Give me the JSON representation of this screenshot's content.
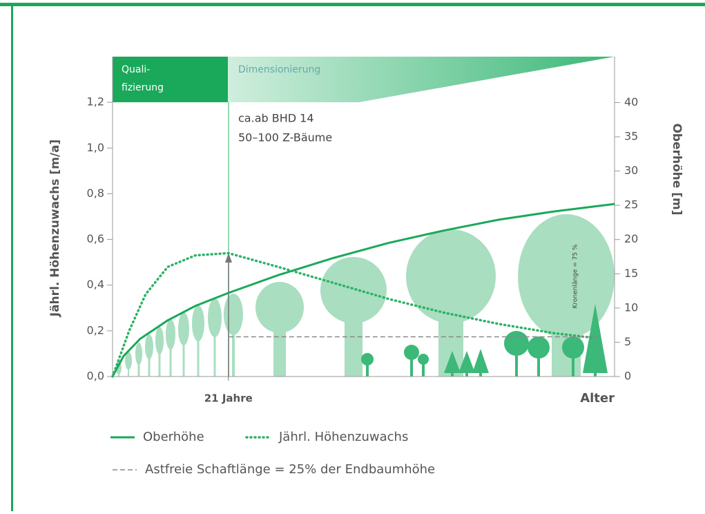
{
  "chart_data": {
    "type": "line",
    "xlabel": "Alter",
    "ylabel": "Jährl. Höhenzuwachs [m/a]",
    "y2label": "Oberhöhe [m]",
    "xlim": [
      0,
      91
    ],
    "xticks": [
      {
        "value": 21,
        "label": "21 Jahre"
      }
    ],
    "ylim": [
      0,
      1.4
    ],
    "yticks": [
      {
        "value": 0,
        "label": "0,0"
      },
      {
        "value": 0.2,
        "label": "0,2"
      },
      {
        "value": 0.4,
        "label": "0,4"
      },
      {
        "value": 0.6,
        "label": "0,6"
      },
      {
        "value": 0.8,
        "label": "0,8"
      },
      {
        "value": 1.0,
        "label": "1,0"
      },
      {
        "value": 1.2,
        "label": "1,2"
      }
    ],
    "y2lim": [
      0,
      46.7
    ],
    "y2ticks": [
      0,
      5,
      10,
      15,
      20,
      25,
      30,
      35,
      40
    ],
    "phases": [
      [
        "Quali-",
        "fizierung"
      ],
      [
        "Dimensionierung"
      ]
    ],
    "annotations": [
      "ca.ab BHD 14",
      "50–100 Z-Bäume",
      "Kronenlänge = 75 %"
    ],
    "series": [
      {
        "name": "Oberhöhe",
        "color": "#1aa85a",
        "style": "solid",
        "axis": "y2",
        "x": [
          0,
          2,
          5,
          10,
          15,
          21,
          30,
          40,
          50,
          60,
          70,
          80,
          91
        ],
        "values": [
          0,
          3,
          5.5,
          8.2,
          10.3,
          12.2,
          14.8,
          17.3,
          19.5,
          21.3,
          22.9,
          24.1,
          25.2
        ]
      },
      {
        "name": "Jährl. Höhenzuwachs",
        "color": "#2bb266",
        "style": "dotted",
        "x": [
          0,
          3,
          6,
          10,
          15,
          21,
          30,
          40,
          50,
          60,
          70,
          80,
          87
        ],
        "values": [
          0,
          0.2,
          0.36,
          0.48,
          0.53,
          0.54,
          0.48,
          0.41,
          0.34,
          0.28,
          0.23,
          0.19,
          0.17
        ]
      },
      {
        "name": "Astfreie Schaftlänge = 25% der Endbaumhöhe",
        "color": "#888888",
        "style": "dashed",
        "axis": "y2",
        "x": [
          21,
          88
        ],
        "values": [
          5.8,
          5.8
        ]
      }
    ]
  }
}
